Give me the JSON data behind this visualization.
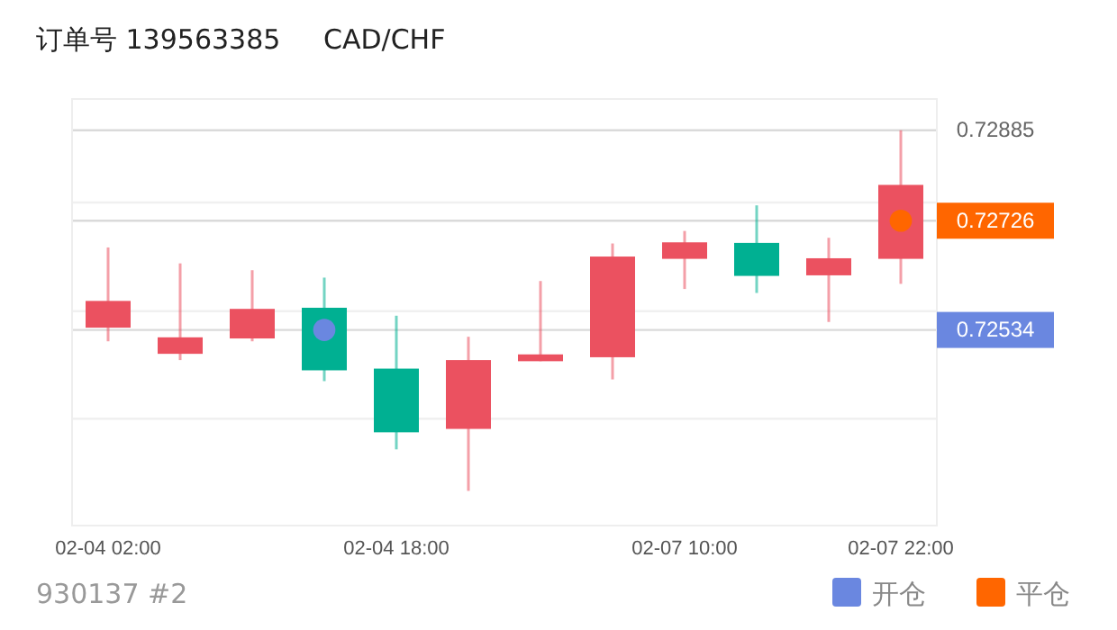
{
  "chart_data": {
    "type": "candlestick",
    "title": "订单号 139563385     CAD/CHF",
    "categories": [
      "02-04 02:00",
      null,
      null,
      null,
      "02-04 18:00",
      null,
      null,
      null,
      "02-07 10:00",
      null,
      null,
      "02-07 22:00"
    ],
    "ohlc": [
      [
        0.72538,
        0.72679,
        0.72514,
        0.72585
      ],
      [
        0.72492,
        0.72651,
        0.72481,
        0.72521
      ],
      [
        0.72519,
        0.72639,
        0.72514,
        0.72571
      ],
      [
        0.72573,
        0.72626,
        0.72444,
        0.72463
      ],
      [
        0.72466,
        0.72559,
        0.72324,
        0.72354
      ],
      [
        0.7236,
        0.72522,
        0.72251,
        0.72481
      ],
      [
        0.72479,
        0.7262,
        0.72479,
        0.72491
      ],
      [
        0.72486,
        0.72686,
        0.72447,
        0.72663
      ],
      [
        0.72659,
        0.72708,
        0.72606,
        0.72688
      ],
      [
        0.72687,
        0.72753,
        0.72599,
        0.72629
      ],
      [
        0.7263,
        0.72696,
        0.72548,
        0.7266
      ],
      [
        0.72659,
        0.72885,
        0.72615,
        0.72789
      ]
    ],
    "colors": [
      "#eb5160",
      "#eb5160",
      "#eb5160",
      "#00b092",
      "#00b092",
      "#eb5160",
      "#eb5160",
      "#eb5160",
      "#eb5160",
      "#00b092",
      "#eb5160",
      "#eb5160"
    ],
    "series": [
      {
        "type": "scatter",
        "name": "开仓",
        "color": "#6a87e0",
        "values": [
          null,
          null,
          null,
          0.72534,
          null,
          null,
          null,
          null,
          null,
          null,
          null,
          null
        ]
      },
      {
        "type": "scatter",
        "name": "平仓",
        "color": "#ff6600",
        "values": [
          null,
          null,
          null,
          null,
          null,
          null,
          null,
          null,
          null,
          null,
          null,
          0.72726
        ]
      }
    ],
    "marker": "circle",
    "ylim": [
      0.7219,
      0.7294
    ],
    "yticks": [
      {
        "value": 0.72378,
        "label": null
      },
      0.72534,
      {
        "value": 0.72567,
        "label": null
      },
      0.72726,
      {
        "value": 0.72758,
        "label": null
      },
      0.72885
    ],
    "grid": "y",
    "annotations": [
      "930137 #2"
    ],
    "legend": "bottom right"
  }
}
